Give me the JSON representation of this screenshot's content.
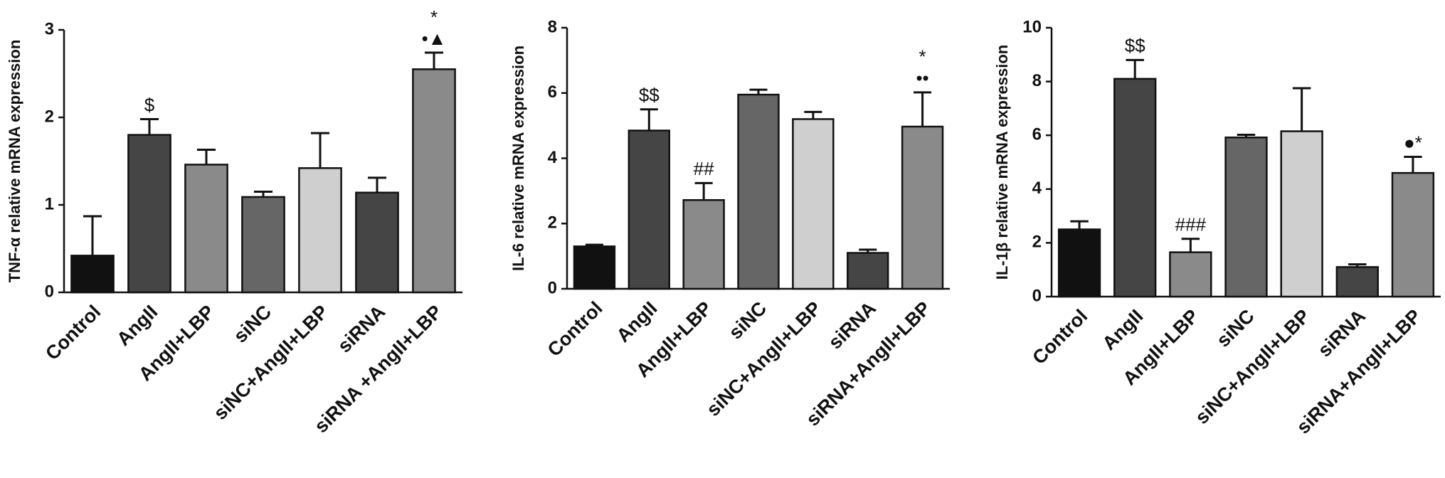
{
  "chart_data": [
    {
      "type": "bar",
      "y_label": "TNF-α relative mRNA expression",
      "categories": [
        "Control",
        "AngII",
        "AngII+LBP",
        "siNC",
        "siNC+AngII+LBP",
        "siRNA",
        "siRNA +AngII+LBP"
      ],
      "values": [
        0.42,
        1.8,
        1.46,
        1.09,
        1.42,
        1.14,
        2.55
      ],
      "errors": [
        0.45,
        0.18,
        0.17,
        0.06,
        0.4,
        0.17,
        0.19
      ],
      "colors": [
        "#111111",
        "#454545",
        "#8a8a8a",
        "#666666",
        "#cfcfcf",
        "#454545",
        "#8a8a8a"
      ],
      "annotations": [
        null,
        [
          "$"
        ],
        null,
        null,
        null,
        null,
        [
          "*",
          "•▲"
        ]
      ],
      "ylim": [
        0,
        3
      ],
      "yticks": [
        0,
        1,
        2,
        3
      ]
    },
    {
      "type": "bar",
      "y_label": "IL-6 relative mRNA expression",
      "categories": [
        "Control",
        "AngII",
        "AngII+LBP",
        "siNC",
        "siNC+AngII+LBP",
        "siRNA",
        "siRNA+AngII+LBP"
      ],
      "values": [
        1.3,
        4.85,
        2.72,
        5.95,
        5.2,
        1.1,
        4.97
      ],
      "errors": [
        0.05,
        0.65,
        0.52,
        0.15,
        0.22,
        0.1,
        1.05
      ],
      "colors": [
        "#111111",
        "#454545",
        "#8a8a8a",
        "#666666",
        "#cfcfcf",
        "#454545",
        "#8a8a8a"
      ],
      "annotations": [
        null,
        [
          "$$"
        ],
        [
          "##"
        ],
        null,
        null,
        null,
        [
          "*",
          "••"
        ]
      ],
      "ylim": [
        0,
        8
      ],
      "yticks": [
        0,
        2,
        4,
        6,
        8
      ]
    },
    {
      "type": "bar",
      "y_label": "IL-1β relative mRNA expression",
      "categories": [
        "Control",
        "AngII",
        "AngII+LBP",
        "siNC",
        "siNC+AngII+LBP",
        "siRNA",
        "siRNA+AngII+LBP"
      ],
      "values": [
        2.5,
        8.1,
        1.65,
        5.92,
        6.15,
        1.1,
        4.6
      ],
      "errors": [
        0.3,
        0.7,
        0.5,
        0.1,
        1.6,
        0.1,
        0.6
      ],
      "colors": [
        "#111111",
        "#454545",
        "#8a8a8a",
        "#666666",
        "#cfcfcf",
        "#454545",
        "#8a8a8a"
      ],
      "annotations": [
        null,
        [
          "$$"
        ],
        [
          "###"
        ],
        null,
        null,
        null,
        [
          "●*"
        ]
      ],
      "ylim": [
        0,
        10
      ],
      "yticks": [
        0,
        2,
        4,
        6,
        8,
        10
      ]
    }
  ]
}
